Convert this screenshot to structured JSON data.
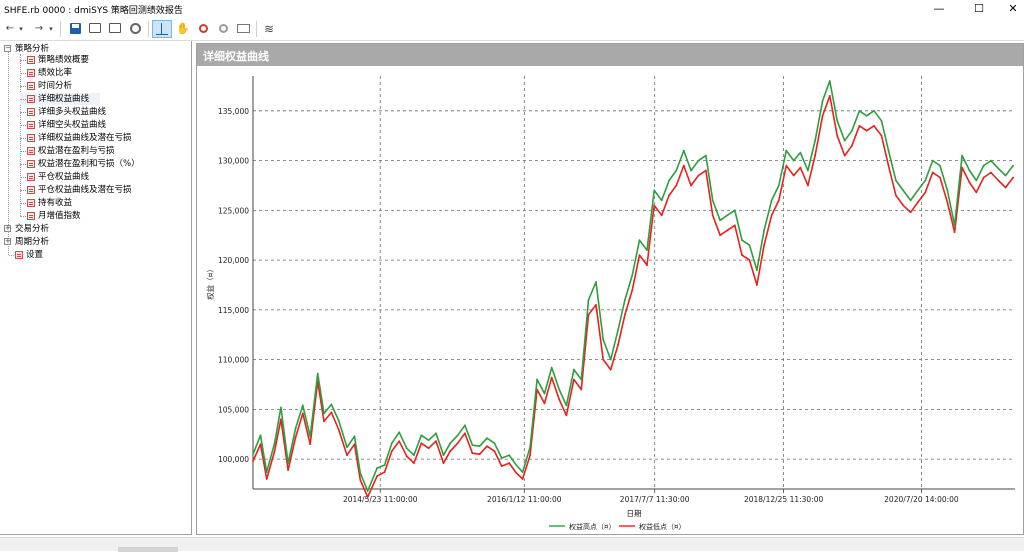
{
  "window": {
    "title": "SHFE.rb 0000 : dmiSYS 策略回测绩效报告",
    "minimize": "—",
    "maximize": "☐",
    "close": "✕"
  },
  "toolbar": {
    "back": "←",
    "back_drop": "▾",
    "forward": "→",
    "forward_drop": "▾",
    "icons": [
      "save-icon",
      "export-icon",
      "print-icon",
      "settings-icon",
      "crosshair-icon",
      "pan-hand-icon",
      "zoom-in-icon",
      "zoom-out-icon",
      "fit-window-icon",
      "chart-style-icon"
    ],
    "pan": "✋",
    "chart_style": "≋"
  },
  "tree": {
    "groups": [
      {
        "label": "策略分析",
        "toggle": "−",
        "children": [
          "策略绩效概要",
          "绩效比率",
          "时间分析",
          "详细权益曲线",
          "详细多头权益曲线",
          "详细空头权益曲线",
          "详细权益曲线及潜在亏损",
          "权益潜在盈利与亏损",
          "权益潜在盈利和亏损（%）",
          "平仓权益曲线",
          "平仓权益曲线及潜在亏损",
          "持有收益",
          "月增值指数"
        ]
      },
      {
        "label": "交易分析",
        "toggle": "+"
      },
      {
        "label": "周期分析",
        "toggle": "+"
      },
      {
        "label": "设置"
      }
    ],
    "selected": "详细权益曲线"
  },
  "chart_panel": {
    "header_title": "详细权益曲线"
  },
  "chart_data": {
    "type": "line",
    "title": "",
    "xlabel": "日期",
    "ylabel": "权益（¤）",
    "ylim": [
      97000,
      138500
    ],
    "yticks": [
      100000,
      105000,
      110000,
      115000,
      120000,
      125000,
      130000,
      135000
    ],
    "ytick_labels": [
      "100,000",
      "105,000",
      "110,000",
      "115,000",
      "120,000",
      "125,000",
      "130,000",
      "135,000"
    ],
    "x_range": [
      "2012-12-10",
      "2021-08-13"
    ],
    "xticks": [
      "2014-05-23",
      "2016-01-12",
      "2017-07-07",
      "2018-12-25",
      "2020-07-20"
    ],
    "xtick_labels": [
      "2014/5/23 11:00:00",
      "2016/1/12 11:00:00",
      "2017/7/7 11:30:00",
      "2018/12/25 11:30:00",
      "2020/7/20 14:00:00"
    ],
    "grid": true,
    "legend_position": "bottom",
    "series": [
      {
        "name": "权益高点（¤）",
        "color": "#2e9e3e",
        "x": [
          "2012-12-10",
          "2013-01-10",
          "2013-02-05",
          "2013-03-10",
          "2013-04-05",
          "2013-05-05",
          "2013-06-05",
          "2013-07-05",
          "2013-08-05",
          "2013-09-05",
          "2013-10-01",
          "2013-11-01",
          "2013-12-01",
          "2014-01-05",
          "2014-02-05",
          "2014-03-01",
          "2014-04-01",
          "2014-05-10",
          "2014-06-10",
          "2014-07-10",
          "2014-08-10",
          "2014-09-10",
          "2014-10-10",
          "2014-11-10",
          "2014-12-10",
          "2015-01-10",
          "2015-02-10",
          "2015-03-10",
          "2015-04-10",
          "2015-05-10",
          "2015-06-10",
          "2015-07-10",
          "2015-08-10",
          "2015-09-10",
          "2015-10-10",
          "2015-11-10",
          "2015-12-10",
          "2016-01-05",
          "2016-02-05",
          "2016-03-05",
          "2016-04-05",
          "2016-05-05",
          "2016-06-05",
          "2016-07-05",
          "2016-08-05",
          "2016-09-05",
          "2016-10-05",
          "2016-11-05",
          "2016-12-05",
          "2017-01-05",
          "2017-02-05",
          "2017-03-05",
          "2017-04-05",
          "2017-05-05",
          "2017-06-05",
          "2017-07-05",
          "2017-08-05",
          "2017-09-05",
          "2017-10-05",
          "2017-11-05",
          "2017-12-05",
          "2018-01-05",
          "2018-02-05",
          "2018-03-05",
          "2018-04-05",
          "2018-05-05",
          "2018-06-05",
          "2018-07-05",
          "2018-08-05",
          "2018-09-05",
          "2018-10-05",
          "2018-11-05",
          "2018-12-05",
          "2019-01-05",
          "2019-02-05",
          "2019-03-05",
          "2019-04-05",
          "2019-05-05",
          "2019-06-05",
          "2019-07-05",
          "2019-08-05",
          "2019-09-05",
          "2019-10-05",
          "2019-11-05",
          "2019-12-05",
          "2020-01-05",
          "2020-02-05",
          "2020-03-05",
          "2020-04-05",
          "2020-05-05",
          "2020-06-05",
          "2020-07-05",
          "2020-08-05",
          "2020-09-05",
          "2020-10-05",
          "2020-11-05",
          "2020-12-05",
          "2021-01-05",
          "2021-02-05",
          "2021-03-05",
          "2021-04-05",
          "2021-05-05",
          "2021-06-05",
          "2021-07-05",
          "2021-08-05"
        ],
        "y": [
          100500,
          102400,
          98700,
          101600,
          105200,
          99600,
          103100,
          105400,
          102300,
          108600,
          104600,
          105500,
          103900,
          101200,
          102300,
          98600,
          96800,
          99100,
          99400,
          101600,
          102700,
          101100,
          100400,
          102400,
          101900,
          102600,
          100400,
          101600,
          102400,
          103400,
          101400,
          101300,
          102100,
          101600,
          100100,
          100400,
          99400,
          98700,
          101200,
          108000,
          106600,
          109200,
          107000,
          105400,
          109000,
          108000,
          116000,
          117800,
          112000,
          110000,
          113000,
          116000,
          118500,
          122000,
          121000,
          127000,
          126000,
          128000,
          129000,
          131000,
          129000,
          130000,
          130500,
          126000,
          124000,
          124500,
          125000,
          122000,
          121500,
          119000,
          123000,
          126000,
          127500,
          131000,
          130000,
          130800,
          129000,
          132000,
          136000,
          138000,
          134000,
          132000,
          133000,
          135000,
          134500,
          135000,
          134000,
          131000,
          128000,
          127000,
          126000,
          127000,
          128000,
          130000,
          129500,
          127000,
          123500,
          130500,
          129000,
          128000,
          129500,
          130000,
          129200,
          128500,
          129500
        ]
      },
      {
        "name": "权益低点（¤）",
        "color": "#e8211b",
        "x": [
          "2012-12-10",
          "2013-01-10",
          "2013-02-05",
          "2013-03-10",
          "2013-04-05",
          "2013-05-05",
          "2013-06-05",
          "2013-07-05",
          "2013-08-05",
          "2013-09-05",
          "2013-10-01",
          "2013-11-01",
          "2013-12-01",
          "2014-01-05",
          "2014-02-05",
          "2014-03-01",
          "2014-04-01",
          "2014-05-10",
          "2014-06-10",
          "2014-07-10",
          "2014-08-10",
          "2014-09-10",
          "2014-10-10",
          "2014-11-10",
          "2014-12-10",
          "2015-01-10",
          "2015-02-10",
          "2015-03-10",
          "2015-04-10",
          "2015-05-10",
          "2015-06-10",
          "2015-07-10",
          "2015-08-10",
          "2015-09-10",
          "2015-10-10",
          "2015-11-10",
          "2015-12-10",
          "2016-01-05",
          "2016-02-05",
          "2016-03-05",
          "2016-04-05",
          "2016-05-05",
          "2016-06-05",
          "2016-07-05",
          "2016-08-05",
          "2016-09-05",
          "2016-10-05",
          "2016-11-05",
          "2016-12-05",
          "2017-01-05",
          "2017-02-05",
          "2017-03-05",
          "2017-04-05",
          "2017-05-05",
          "2017-06-05",
          "2017-07-05",
          "2017-08-05",
          "2017-09-05",
          "2017-10-05",
          "2017-11-05",
          "2017-12-05",
          "2018-01-05",
          "2018-02-05",
          "2018-03-05",
          "2018-04-05",
          "2018-05-05",
          "2018-06-05",
          "2018-07-05",
          "2018-08-05",
          "2018-09-05",
          "2018-10-05",
          "2018-11-05",
          "2018-12-05",
          "2019-01-05",
          "2019-02-05",
          "2019-03-05",
          "2019-04-05",
          "2019-05-05",
          "2019-06-05",
          "2019-07-05",
          "2019-08-05",
          "2019-09-05",
          "2019-10-05",
          "2019-11-05",
          "2019-12-05",
          "2020-01-05",
          "2020-02-05",
          "2020-03-05",
          "2020-04-05",
          "2020-05-05",
          "2020-06-05",
          "2020-07-05",
          "2020-08-05",
          "2020-09-05",
          "2020-10-05",
          "2020-11-05",
          "2020-12-05",
          "2021-01-05",
          "2021-02-05",
          "2021-03-05",
          "2021-04-05",
          "2021-05-05",
          "2021-06-05",
          "2021-07-05",
          "2021-08-05"
        ],
        "y": [
          99800,
          101500,
          98000,
          100800,
          104000,
          98900,
          102200,
          104600,
          101500,
          107800,
          103800,
          104700,
          103000,
          100400,
          101500,
          97900,
          96200,
          98300,
          98700,
          100800,
          101800,
          100300,
          99600,
          101600,
          101100,
          101800,
          99600,
          100800,
          101600,
          102600,
          100600,
          100500,
          101300,
          100800,
          99300,
          99600,
          98600,
          98000,
          100400,
          107000,
          105600,
          108200,
          106000,
          104400,
          108000,
          107000,
          114500,
          115500,
          110000,
          109000,
          111500,
          114500,
          117000,
          120500,
          119500,
          125500,
          124500,
          126500,
          127500,
          129500,
          127500,
          128500,
          129000,
          124500,
          122500,
          123000,
          123500,
          120500,
          120000,
          117500,
          121500,
          124500,
          126000,
          129500,
          128500,
          129300,
          127500,
          130500,
          134500,
          136500,
          132500,
          130500,
          131500,
          133500,
          133000,
          133500,
          132500,
          129500,
          126500,
          125500,
          124800,
          125800,
          126800,
          128800,
          128300,
          125800,
          122800,
          129300,
          127800,
          126800,
          128300,
          128800,
          128000,
          127300,
          128300
        ]
      }
    ]
  }
}
